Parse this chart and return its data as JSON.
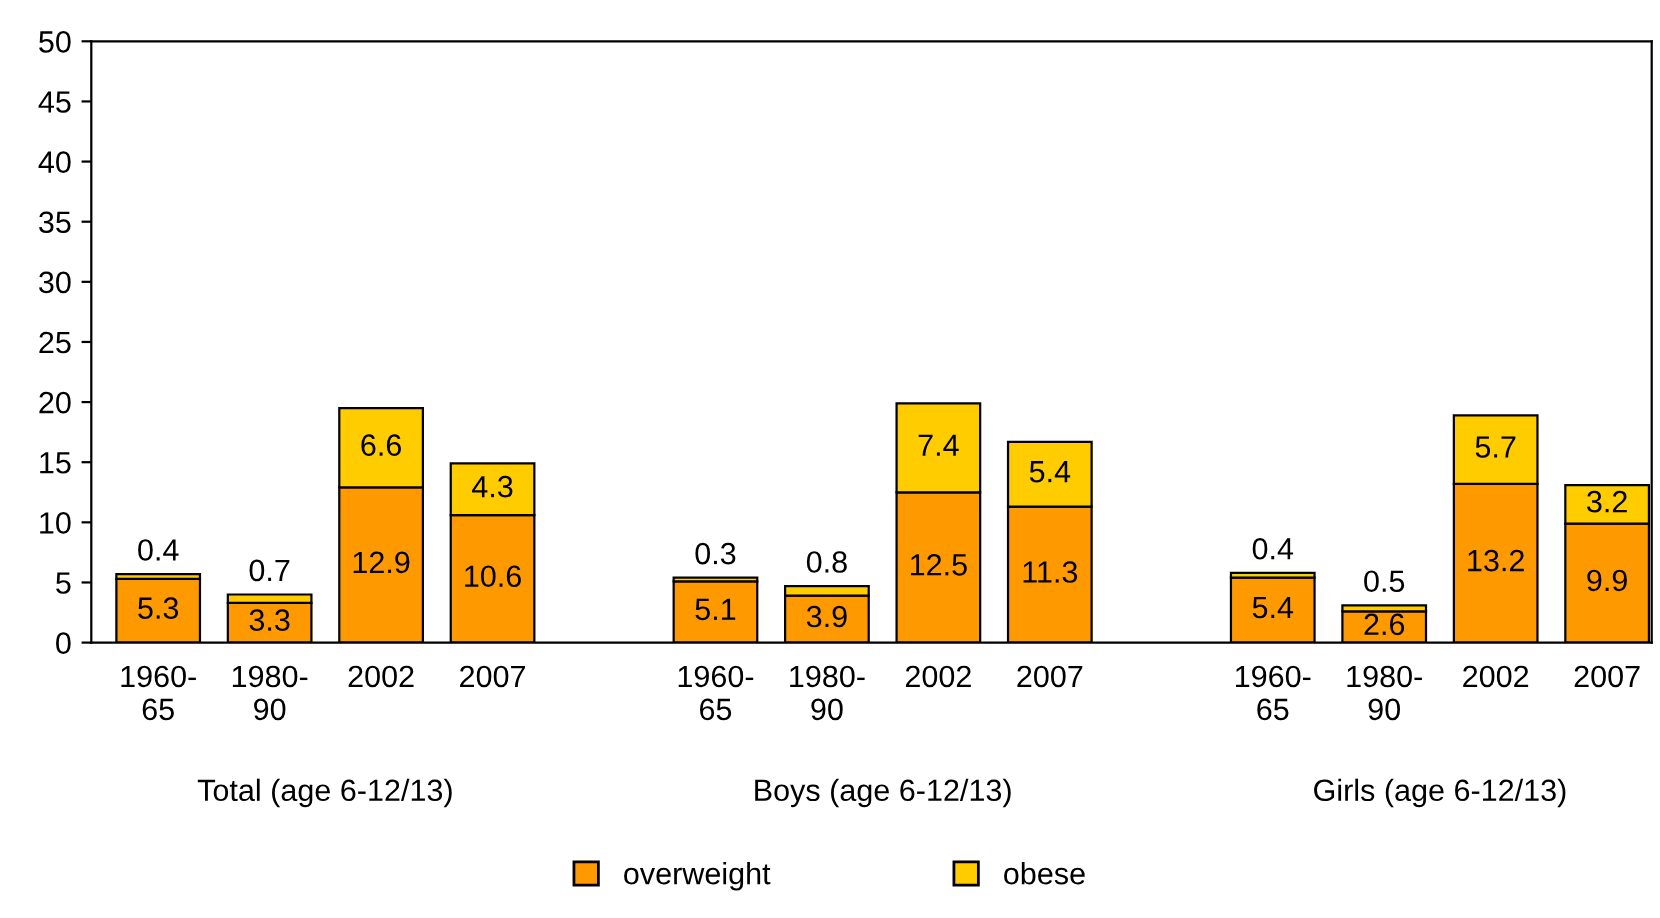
{
  "chart_data": {
    "type": "bar",
    "stacked": true,
    "data_labels": true,
    "categories": [
      "1960-\n65",
      "1980-\n90",
      "2002",
      "2007",
      null,
      "1960-\n65",
      "1980-\n90",
      "2002",
      "2007",
      null,
      "1960-\n65",
      "1980-\n90",
      "2002",
      "2007"
    ],
    "series": [
      {
        "name": "overweight",
        "color": "#ff9900",
        "values": [
          5.3,
          3.3,
          12.9,
          10.6,
          null,
          5.1,
          3.9,
          12.5,
          11.3,
          null,
          5.4,
          2.6,
          13.2,
          9.9
        ]
      },
      {
        "name": "obese",
        "color": "#ffcc00",
        "values": [
          0.4,
          0.7,
          6.6,
          4.3,
          null,
          0.3,
          0.8,
          7.4,
          5.4,
          null,
          0.4,
          0.5,
          5.7,
          3.2
        ]
      }
    ],
    "ylim": [
      0,
      50
    ],
    "yticks": [
      0,
      5,
      10,
      15,
      20,
      25,
      30,
      35,
      40,
      45,
      50
    ],
    "grid": false,
    "legend": "bottom",
    "annotations": [
      "Total (age 6-12/13)",
      "Boys (age 6-12/13)",
      "Girls (age 6-12/13)"
    ]
  }
}
